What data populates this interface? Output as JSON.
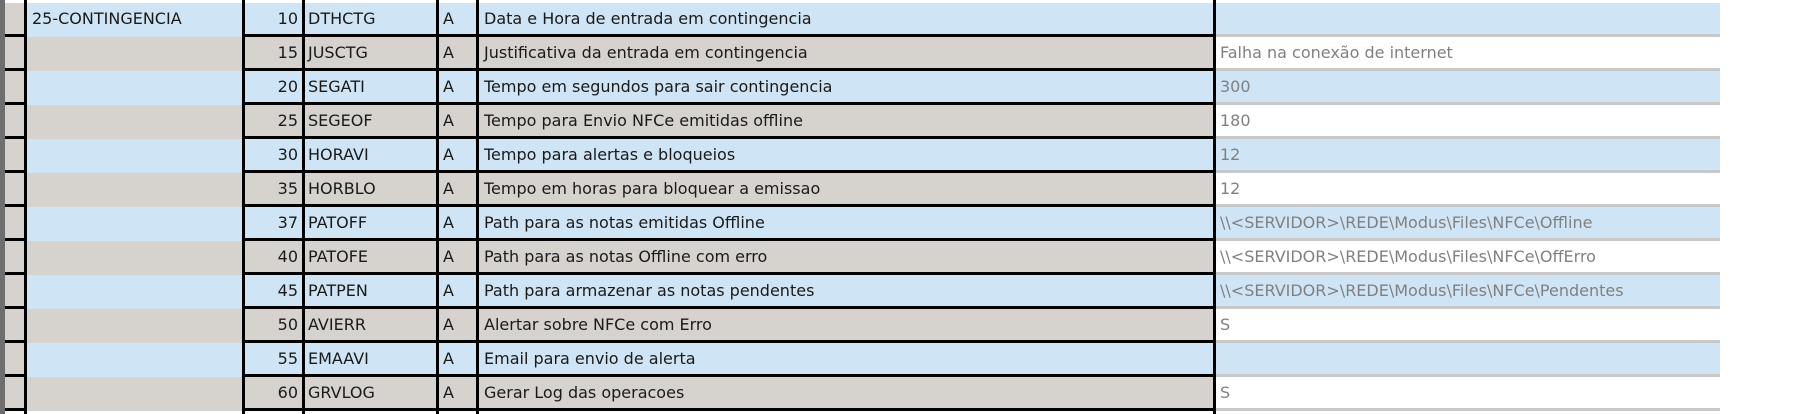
{
  "rows": [
    {
      "group": "25-CONTINGENCIA",
      "num": "10",
      "code": "DTHCTG",
      "type": "A",
      "desc": "Data e Hora de entrada em contingencia",
      "value": ""
    },
    {
      "group": "",
      "num": "15",
      "code": "JUSCTG",
      "type": "A",
      "desc": "Justificativa da entrada em contingencia",
      "value": "Falha na conexão de internet"
    },
    {
      "group": "",
      "num": "20",
      "code": "SEGATI",
      "type": "A",
      "desc": "Tempo em segundos para sair contingencia",
      "value": "300"
    },
    {
      "group": "",
      "num": "25",
      "code": "SEGEOF",
      "type": "A",
      "desc": "Tempo para Envio NFCe emitidas offline",
      "value": "180"
    },
    {
      "group": "",
      "num": "30",
      "code": "HORAVI",
      "type": "A",
      "desc": "Tempo para alertas e bloqueios",
      "value": "12"
    },
    {
      "group": "",
      "num": "35",
      "code": "HORBLO",
      "type": "A",
      "desc": "Tempo em horas para bloquear a emissao",
      "value": "12"
    },
    {
      "group": "",
      "num": "37",
      "code": "PATOFF",
      "type": "A",
      "desc": "Path para as notas emitidas Offline",
      "value": "\\\\<SERVIDOR>\\REDE\\Modus\\Files\\NFCe\\Offline"
    },
    {
      "group": "",
      "num": "40",
      "code": "PATOFE",
      "type": "A",
      "desc": "Path para as notas Offline com erro",
      "value": "\\\\<SERVIDOR>\\REDE\\Modus\\Files\\NFCe\\OffErro"
    },
    {
      "group": "",
      "num": "45",
      "code": "PATPEN",
      "type": "A",
      "desc": "Path para armazenar as notas pendentes",
      "value": "\\\\<SERVIDOR>\\REDE\\Modus\\Files\\NFCe\\Pendentes"
    },
    {
      "group": "",
      "num": "50",
      "code": "AVIERR",
      "type": "A",
      "desc": "Alertar sobre NFCe com Erro",
      "value": "S"
    },
    {
      "group": "",
      "num": "55",
      "code": "EMAAVI",
      "type": "A",
      "desc": "Email para envio de alerta",
      "value": ""
    },
    {
      "group": "",
      "num": "60",
      "code": "GRVLOG",
      "type": "A",
      "desc": "Gerar Log das operacoes",
      "value": "S"
    }
  ],
  "colors": {
    "row_blue": "#cfe5f5",
    "row_gray": "#d6d3ce",
    "value_text": "#808080"
  }
}
